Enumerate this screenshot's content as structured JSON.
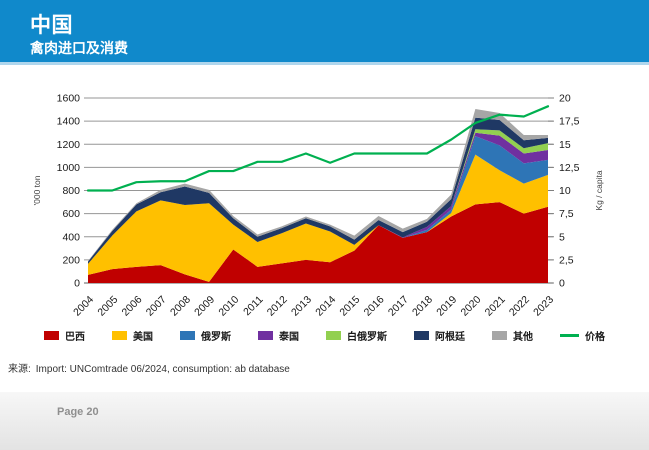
{
  "slide": {
    "header": {
      "title": "中国",
      "subtitle": "禽肉进口及消费"
    },
    "source": {
      "label": "来源:",
      "text": "Import: UNComtrade 06/2024, consumption: ab database"
    },
    "page_number": "Page 20"
  },
  "colors": {
    "header_bg": "#1089CB",
    "header_strip": "#AFD6ED",
    "grid": "#969696",
    "axis": "#7f7f7f"
  },
  "chart_data": {
    "type": "area",
    "stacked": true,
    "grid": true,
    "legend_position": "bottom",
    "x": [
      2004,
      2005,
      2006,
      2007,
      2008,
      2009,
      2010,
      2011,
      2012,
      2013,
      2014,
      2015,
      2016,
      2017,
      2018,
      2019,
      2020,
      2021,
      2022,
      2023
    ],
    "left_axis": {
      "label": "'000 ton",
      "min": 0,
      "max": 1600,
      "step": 200,
      "tick_labels": [
        "0",
        "200",
        "400",
        "600",
        "800",
        "1000",
        "1200",
        "1400",
        "1600"
      ]
    },
    "right_axis": {
      "label": "Kg / capita",
      "min": 0,
      "max": 20,
      "step": 2.5,
      "tick_labels": [
        "0",
        "2,5",
        "5",
        "7,5",
        "10",
        "12,5",
        "15",
        "17,5",
        "20"
      ]
    },
    "series": [
      {
        "key": "brazil",
        "name": "巴西",
        "type": "area",
        "axis": "left",
        "color": "#C00000",
        "values": [
          70,
          120,
          140,
          155,
          75,
          10,
          290,
          140,
          170,
          200,
          180,
          280,
          500,
          390,
          440,
          575,
          680,
          700,
          600,
          660
        ]
      },
      {
        "key": "usa",
        "name": "美国",
        "type": "area",
        "axis": "left",
        "color": "#FFC000",
        "values": [
          95,
          290,
          480,
          560,
          600,
          680,
          215,
          215,
          260,
          315,
          265,
          50,
          0,
          0,
          0,
          30,
          430,
          275,
          260,
          275
        ]
      },
      {
        "key": "russia",
        "name": "俄罗斯",
        "type": "area",
        "axis": "left",
        "color": "#2E75B6",
        "values": [
          0,
          0,
          0,
          0,
          0,
          0,
          0,
          0,
          0,
          0,
          0,
          0,
          0,
          0,
          20,
          30,
          160,
          215,
          175,
          130
        ]
      },
      {
        "key": "thailand",
        "name": "泰国",
        "type": "area",
        "axis": "left",
        "color": "#7030A0",
        "values": [
          0,
          0,
          0,
          0,
          0,
          0,
          0,
          0,
          0,
          0,
          0,
          0,
          0,
          5,
          25,
          30,
          30,
          85,
          85,
          85
        ]
      },
      {
        "key": "belarus",
        "name": "白俄罗斯",
        "type": "area",
        "axis": "left",
        "color": "#92D050",
        "values": [
          0,
          0,
          0,
          0,
          0,
          0,
          0,
          0,
          0,
          0,
          0,
          0,
          0,
          0,
          0,
          0,
          30,
          45,
          45,
          60
        ]
      },
      {
        "key": "argentina",
        "name": "阿根廷",
        "type": "area",
        "axis": "left",
        "color": "#1F3864",
        "values": [
          20,
          40,
          60,
          70,
          160,
          90,
          55,
          45,
          45,
          45,
          45,
          45,
          45,
          45,
          45,
          60,
          100,
          90,
          70,
          45
        ]
      },
      {
        "key": "others",
        "name": "其他",
        "type": "area",
        "axis": "left",
        "color": "#A6A6A6",
        "values": [
          5,
          10,
          10,
          20,
          25,
          25,
          20,
          20,
          15,
          15,
          15,
          35,
          35,
          30,
          25,
          40,
          75,
          60,
          45,
          25
        ]
      },
      {
        "key": "price",
        "name": "价格",
        "type": "line",
        "axis": "right",
        "color": "#00B050",
        "values": [
          10,
          10,
          10.9,
          11,
          11,
          12.1,
          12.1,
          13.1,
          13.1,
          14,
          13,
          14,
          14,
          14,
          14,
          15.5,
          17.3,
          18.2,
          18,
          19.1
        ]
      }
    ]
  }
}
